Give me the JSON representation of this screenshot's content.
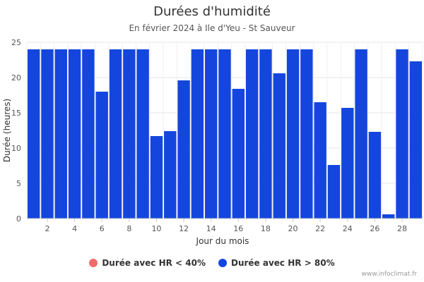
{
  "chart_data": {
    "type": "bar",
    "title": "Durées d'humidité",
    "subtitle": "En février 2024 à Ile d'Yeu - St Sauveur",
    "xlabel": "Jour du mois",
    "ylabel": "Durée (heures)",
    "ylim": [
      0,
      25
    ],
    "yticks": [
      0,
      5,
      10,
      15,
      20,
      25
    ],
    "xticks": [
      2,
      4,
      6,
      8,
      10,
      12,
      14,
      16,
      18,
      20,
      22,
      24,
      26,
      28
    ],
    "categories": [
      1,
      2,
      3,
      4,
      5,
      6,
      7,
      8,
      9,
      10,
      11,
      12,
      13,
      14,
      15,
      16,
      17,
      18,
      19,
      20,
      21,
      22,
      23,
      24,
      25,
      26,
      27,
      28,
      29
    ],
    "series": [
      {
        "name": "Durée avec HR < 40%",
        "color": "#f26b6b",
        "values": [
          0,
          0,
          0,
          0,
          0,
          0,
          0,
          0,
          0,
          0,
          0,
          0,
          0,
          0,
          0,
          0,
          0,
          0,
          0,
          0,
          0,
          0,
          0,
          0,
          0,
          0,
          0,
          0,
          0
        ]
      },
      {
        "name": "Durée avec HR > 80%",
        "color": "#1446de",
        "values": [
          24,
          24,
          24,
          24,
          24,
          18,
          24,
          24,
          24,
          11.7,
          12.4,
          19.6,
          24,
          24,
          24,
          18.4,
          24,
          24,
          20.6,
          24,
          24,
          16.5,
          7.6,
          15.7,
          24,
          12.3,
          0.6,
          24,
          22.3
        ]
      }
    ],
    "grid": true,
    "legend_position": "bottom"
  },
  "credit": "www.infoclimat.fr"
}
